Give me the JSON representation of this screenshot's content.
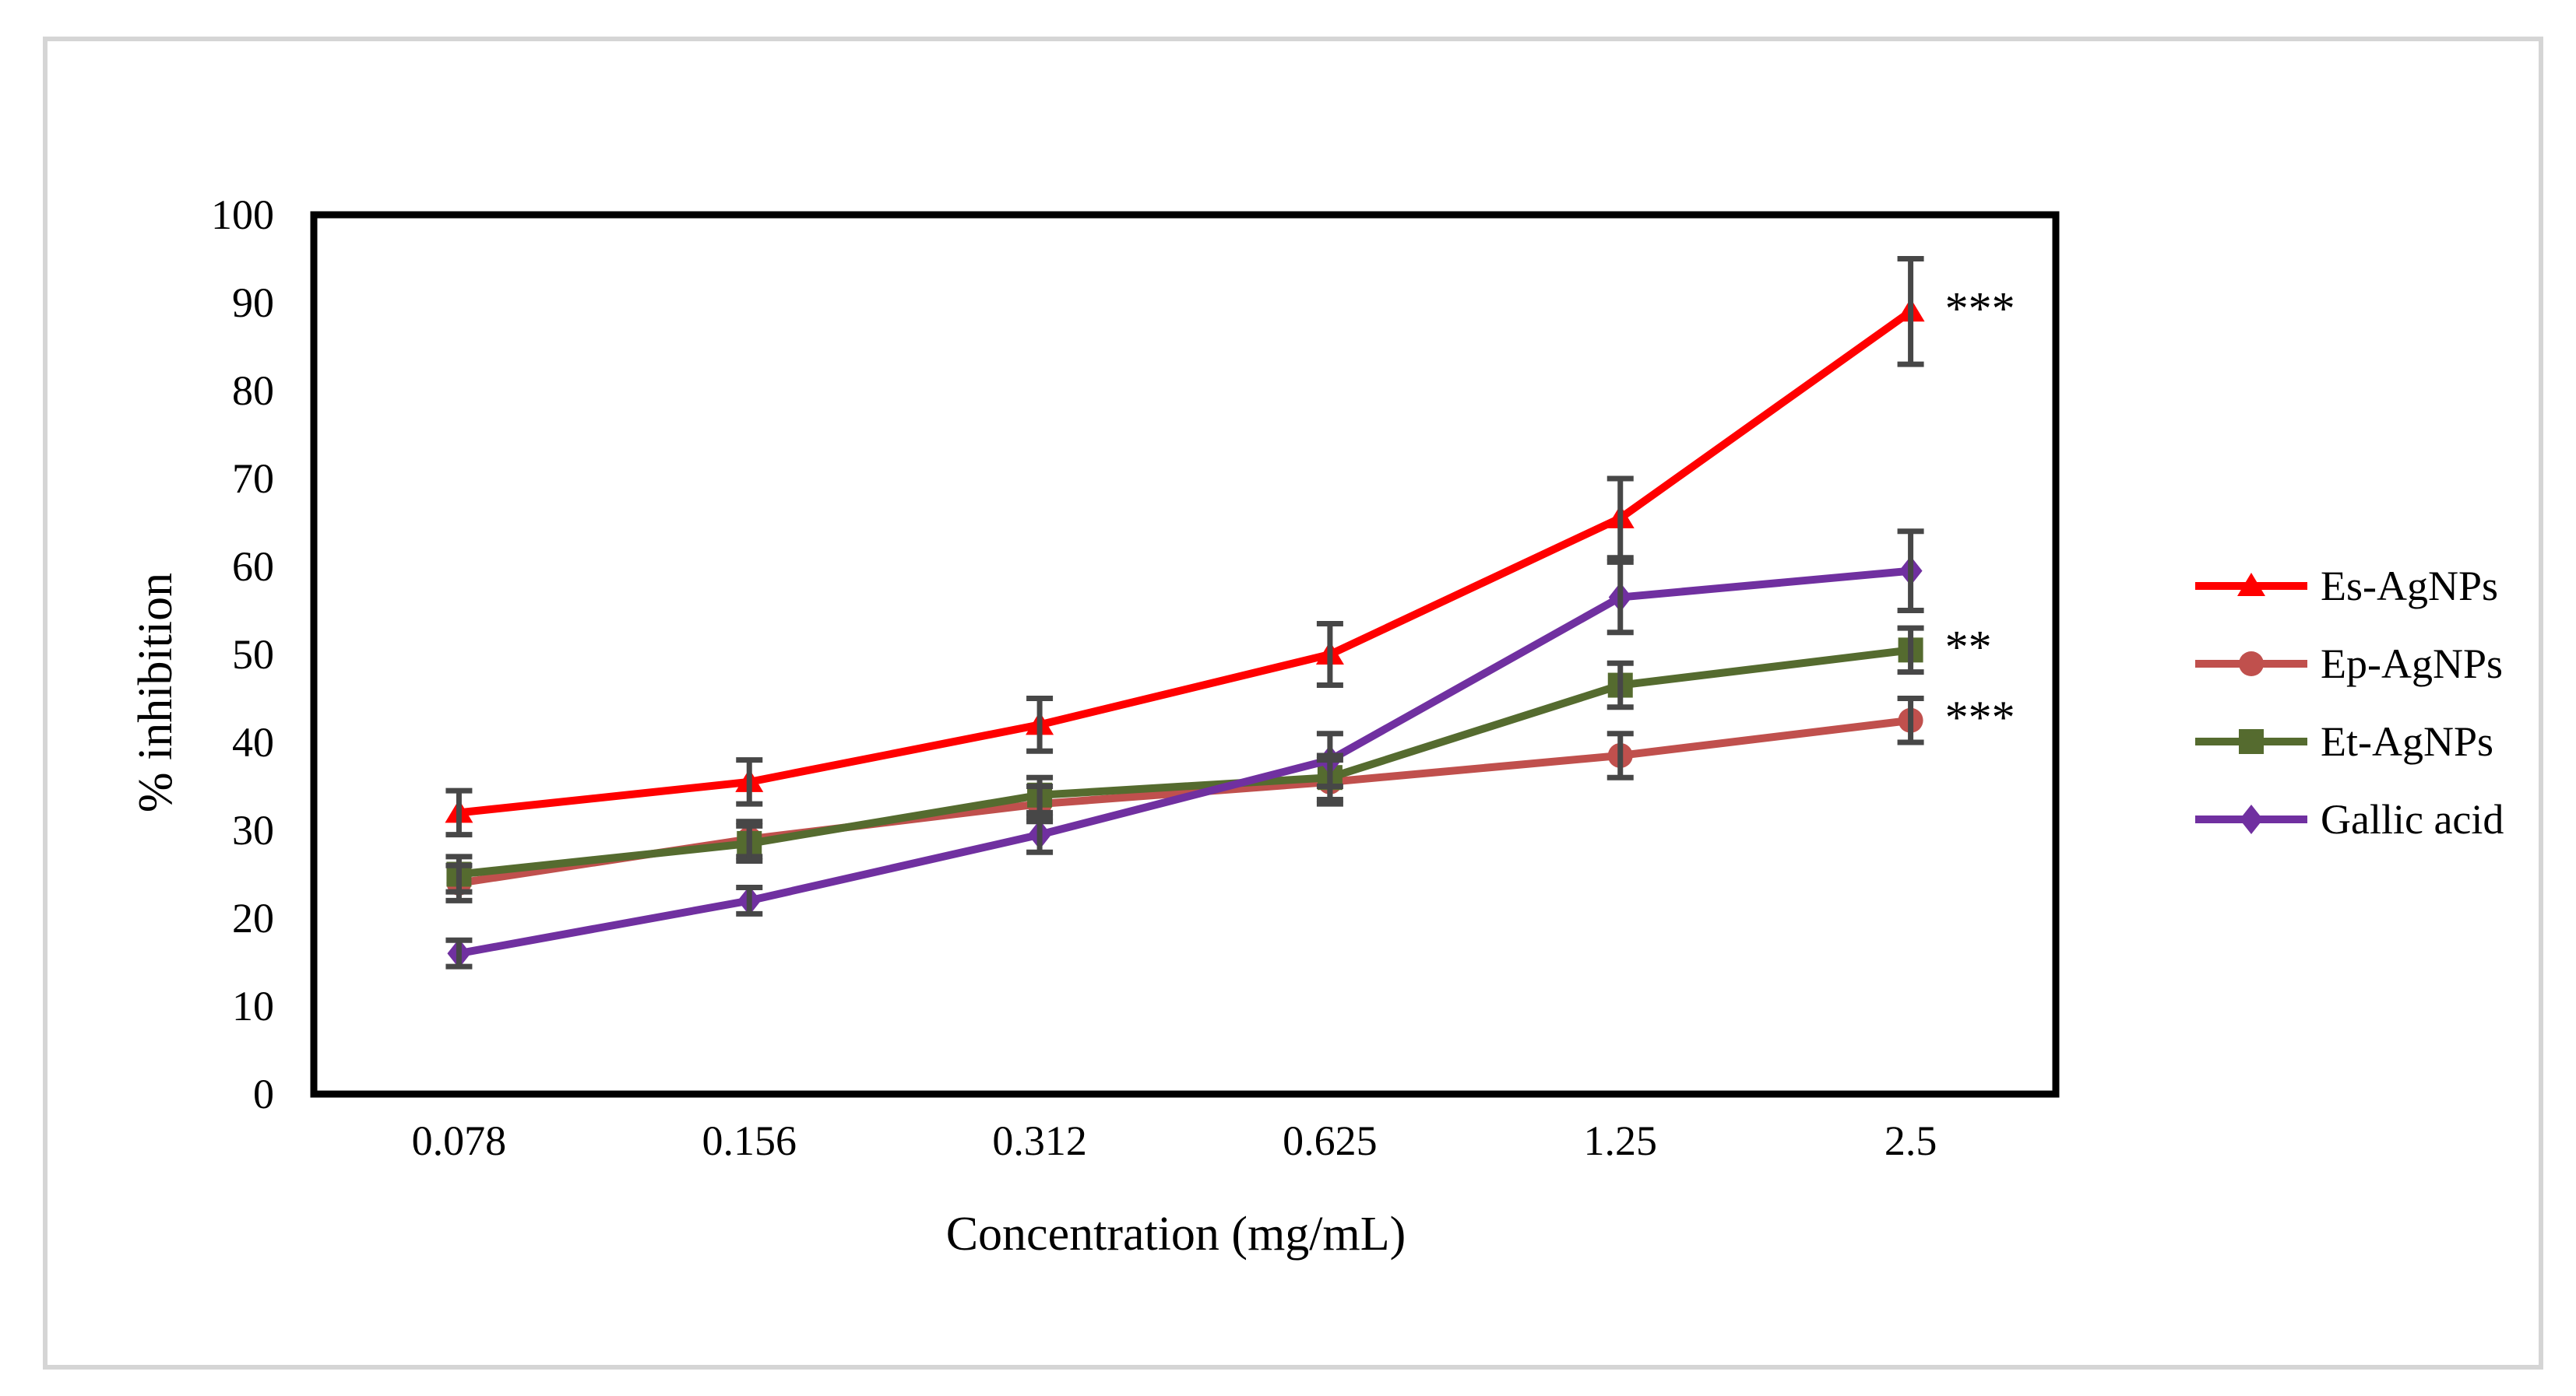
{
  "figure": {
    "background": "#ffffff",
    "border_color": "#d5d5d5"
  },
  "chart_data": {
    "type": "line",
    "title": "",
    "xlabel": "Concentration (mg/mL)",
    "ylabel": "% inhibition",
    "x_categories": [
      "0.078",
      "0.156",
      "0.312",
      "0.625",
      "1.25",
      "2.5"
    ],
    "y_ticks": [
      0,
      10,
      20,
      30,
      40,
      50,
      60,
      70,
      80,
      90,
      100
    ],
    "ylim": [
      0,
      100
    ],
    "grid": false,
    "legend_position": "right-outside",
    "axis_color": "#000000",
    "error_bar_color": "#474747",
    "series": [
      {
        "name": "Es-AgNPs",
        "color": "#ff0000",
        "marker": "triangle",
        "values": [
          32,
          35.5,
          42,
          50,
          65.5,
          89
        ],
        "errors": [
          2.5,
          2.5,
          3,
          3.5,
          4.5,
          6
        ],
        "significance": "***"
      },
      {
        "name": "Ep-AgNPs",
        "color": "#c0504d",
        "marker": "circle",
        "values": [
          24,
          29,
          33,
          35.5,
          38.5,
          42.5
        ],
        "errors": [
          2,
          2,
          2,
          2.5,
          2.5,
          2.5
        ],
        "significance": "***"
      },
      {
        "name": "Et-AgNPs",
        "color": "#556b2f",
        "marker": "square",
        "values": [
          25,
          28.5,
          34,
          36,
          46.5,
          50.5
        ],
        "errors": [
          2,
          2,
          2,
          2.5,
          2.5,
          2.5
        ],
        "significance": "**"
      },
      {
        "name": "Gallic acid",
        "color": "#7030a0",
        "marker": "diamond",
        "values": [
          16,
          22,
          29.5,
          38,
          56.5,
          59.5
        ],
        "errors": [
          1.5,
          1.5,
          2,
          3,
          4,
          4.5
        ],
        "significance": ""
      }
    ]
  }
}
